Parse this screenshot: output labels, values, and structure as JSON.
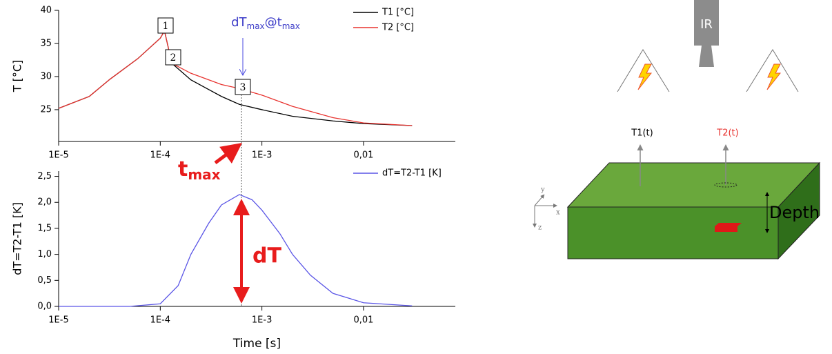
{
  "chart_data": [
    {
      "type": "line",
      "ylabel": "T [°C]",
      "xscale": "log",
      "x": [
        1e-05,
        2e-05,
        3.2e-05,
        6e-05,
        0.0001,
        0.00011,
        0.00013,
        0.0002,
        0.0004,
        0.0006,
        0.001,
        0.002,
        0.005,
        0.01,
        0.03
      ],
      "series": [
        {
          "name": "T1 [°C]",
          "color": "#000000",
          "values": [
            25.2,
            27,
            29.6,
            32.7,
            35.8,
            36.9,
            32,
            29.5,
            27,
            25.8,
            25,
            24,
            23.3,
            22.9,
            22.6
          ]
        },
        {
          "name": "T2 [°C]",
          "color": "#e8332f",
          "values": [
            25.2,
            27,
            29.6,
            32.7,
            35.8,
            36.9,
            32,
            30.5,
            28.8,
            28.2,
            27.2,
            25.5,
            23.8,
            23.0,
            22.6
          ]
        }
      ],
      "xlim": [
        1e-05,
        0.08
      ],
      "ylim": [
        20.2,
        40
      ],
      "xticks": [
        {
          "value": 1e-05,
          "label": "1E-5"
        },
        {
          "value": 0.0001,
          "label": "1E-4"
        },
        {
          "value": 0.001,
          "label": "1E-3"
        },
        {
          "value": 0.01,
          "label": "0,01"
        }
      ],
      "yticks": [
        25,
        30,
        35,
        40
      ],
      "legend": "upper right",
      "annotations": [
        "1",
        "2",
        "3"
      ],
      "peak_label": [
        "dT",
        "max",
        "@t",
        "max"
      ]
    },
    {
      "type": "line",
      "ylabel": "dT=T2-T1 [K]",
      "xlabel": "Time [s]",
      "xscale": "log",
      "x": [
        1e-05,
        5e-05,
        0.0001,
        0.00015,
        0.0002,
        0.0003,
        0.0004,
        0.0006,
        0.0008,
        0.001,
        0.0015,
        0.002,
        0.003,
        0.005,
        0.01,
        0.03
      ],
      "series": [
        {
          "name": "dT=T2-T1 [K]",
          "color": "#5a55e6",
          "values": [
            0,
            0,
            0.05,
            0.4,
            1.0,
            1.6,
            1.95,
            2.15,
            2.05,
            1.85,
            1.4,
            1.0,
            0.6,
            0.25,
            0.07,
            0.01
          ]
        }
      ],
      "xlim": [
        1e-05,
        0.08
      ],
      "ylim": [
        0,
        2.6
      ],
      "xticks": [
        {
          "value": 1e-05,
          "label": "1E-5"
        },
        {
          "value": 0.0001,
          "label": "1E-4"
        },
        {
          "value": 0.001,
          "label": "1E-3"
        },
        {
          "value": 0.01,
          "label": "0,01"
        }
      ],
      "yticks": [
        {
          "value": 0,
          "label": "0,0"
        },
        {
          "value": 0.5,
          "label": "0,5"
        },
        {
          "value": 1,
          "label": "1,0"
        },
        {
          "value": 1.5,
          "label": "1,5"
        },
        {
          "value": 2,
          "label": "2,0"
        },
        {
          "value": 2.5,
          "label": "2,5"
        }
      ],
      "legend": "upper right",
      "tmax_label": [
        "t",
        "max"
      ],
      "dt_label": "dT"
    }
  ],
  "diagram": {
    "camera": "IR",
    "probe1": "T1(t)",
    "probe2": "T2(t)",
    "depth": "Depth",
    "axes": [
      "y",
      "x",
      "z"
    ]
  }
}
